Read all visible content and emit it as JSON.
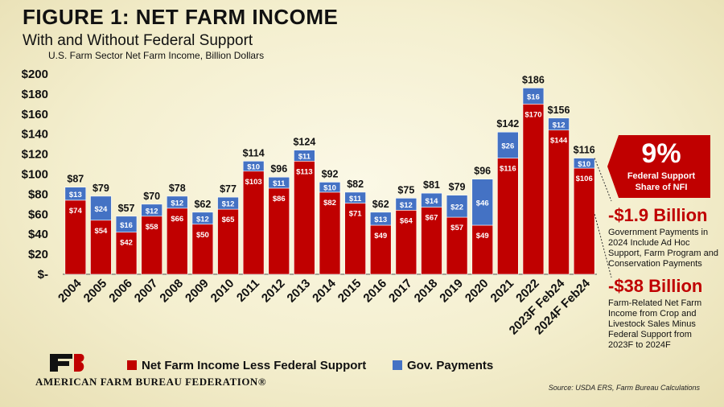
{
  "header": {
    "title": "FIGURE 1: NET FARM INCOME",
    "subtitle": "With and Without Federal Support",
    "units_note": "U.S. Farm Sector Net Farm Income, Billion Dollars"
  },
  "chart_data": {
    "type": "bar",
    "stacked": true,
    "categories": [
      "2004",
      "2005",
      "2006",
      "2007",
      "2008",
      "2009",
      "2010",
      "2011",
      "2012",
      "2013",
      "2014",
      "2015",
      "2016",
      "2017",
      "2018",
      "2019",
      "2020",
      "2021",
      "2022",
      "2023F Feb24",
      "2024F Feb24"
    ],
    "series": [
      {
        "name": "Net Farm Income Less Federal Support",
        "color": "#c00000",
        "values": [
          74,
          54,
          42,
          58,
          66,
          50,
          65,
          103,
          86,
          113,
          82,
          71,
          49,
          64,
          67,
          57,
          49,
          116,
          170,
          144,
          106
        ],
        "labels": [
          "$74",
          "$54",
          "$42",
          "$58",
          "$66",
          "$50",
          "$65",
          "$103",
          "$86",
          "$113",
          "$82",
          "$71",
          "$49",
          "$64",
          "$67",
          "$57",
          "$49",
          "$116",
          "$170",
          "$144",
          "$106"
        ]
      },
      {
        "name": "Gov. Payments",
        "color": "#4472c4",
        "values": [
          13,
          24,
          16,
          12,
          12,
          12,
          12,
          10,
          11,
          11,
          10,
          11,
          13,
          12,
          14,
          22,
          46,
          26,
          16,
          12,
          10
        ],
        "labels": [
          "$13",
          "$24",
          "$16",
          "$12",
          "$12",
          "$12",
          "$12",
          "$10",
          "$11",
          "$11",
          "$10",
          "$11",
          "$13",
          "$12",
          "$14",
          "$22",
          "$46",
          "$26",
          "$16",
          "$12",
          "$10"
        ]
      }
    ],
    "totals": [
      87,
      79,
      57,
      70,
      78,
      62,
      77,
      114,
      96,
      124,
      92,
      82,
      62,
      75,
      81,
      79,
      96,
      142,
      186,
      156,
      116
    ],
    "total_labels": [
      "$87",
      "$79",
      "$57",
      "$70",
      "$78",
      "$62",
      "$77",
      "$114",
      "$96",
      "$124",
      "$92",
      "$82",
      "$62",
      "$75",
      "$81",
      "$79",
      "$96",
      "$142",
      "$186",
      "$156",
      "$116"
    ],
    "ylim": [
      0,
      200
    ],
    "yticks": [
      0,
      20,
      40,
      60,
      80,
      100,
      120,
      140,
      160,
      180,
      200
    ],
    "ytick_labels": [
      "$-",
      "$20",
      "$40",
      "$60",
      "$80",
      "$100",
      "$120",
      "$140",
      "$160",
      "$180",
      "$200"
    ],
    "grid": false,
    "legend_position": "bottom"
  },
  "callouts": {
    "share_value": "9%",
    "share_label_1": "Federal Support",
    "share_label_2": "Share of NFI",
    "gov_change": "-$1.9 Billion",
    "gov_desc": [
      "Government Payments in",
      "2024 Include Ad Hoc",
      "Support, Farm Program and",
      "Conservation Payments"
    ],
    "nfi_change": "-$38 Billion",
    "nfi_desc": [
      "Farm-Related Net Farm",
      "Income from Crop and",
      "Livestock Sales Minus",
      "Federal Support from",
      "2023F to 2024F"
    ]
  },
  "legend": {
    "item1": "Net Farm Income Less Federal Support",
    "item2": "Gov. Payments"
  },
  "footer": {
    "org_name": "AMERICAN FARM BUREAU FEDERATION®",
    "source": "Source: USDA ERS, Farm Bureau Calculations"
  },
  "colors": {
    "red": "#c00000",
    "blue": "#4472c4",
    "callout_red": "#c00000"
  }
}
